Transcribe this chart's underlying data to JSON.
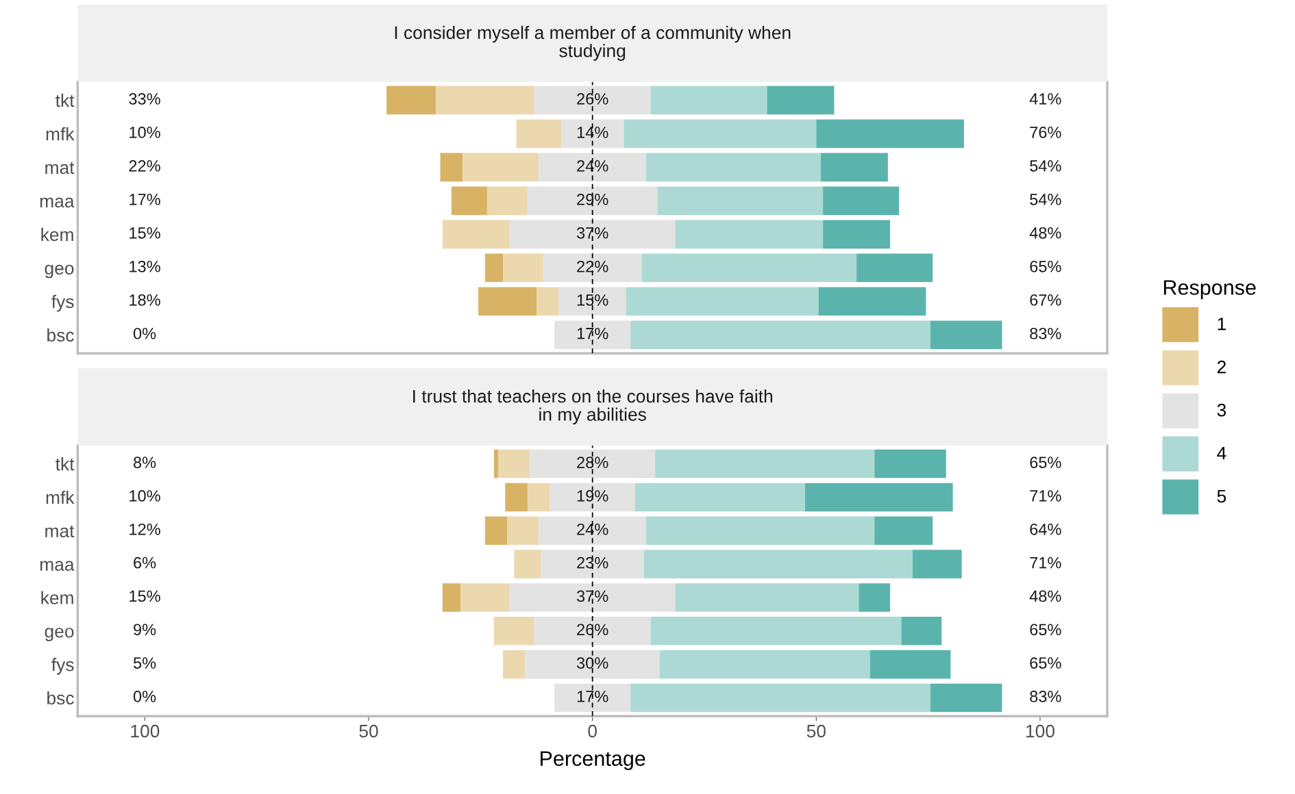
{
  "chart_data": [
    {
      "type": "bar",
      "orientation": "horizontal",
      "title": "I consider myself a member of a community when\nstudying",
      "categories": [
        "tkt",
        "mfk",
        "mat",
        "maa",
        "kem",
        "geo",
        "fys",
        "bsc"
      ],
      "series": [
        {
          "name": "1",
          "color": "#d8b365",
          "values": [
            11,
            null,
            5,
            8,
            null,
            4,
            13,
            null
          ],
          "base": [
            -46,
            null,
            -34,
            -31.5,
            null,
            -24,
            -25.5,
            null
          ]
        },
        {
          "name": "2",
          "color": "#ecd8af",
          "values": [
            22,
            10,
            17,
            9,
            15,
            9,
            5,
            null
          ],
          "base": [
            -35,
            -17,
            -29,
            -23.5,
            -33.5,
            -20,
            -12.5,
            null
          ]
        },
        {
          "name": "3",
          "color": "#e3e3e3",
          "values": [
            26,
            14,
            24,
            29,
            37,
            22,
            15,
            17
          ],
          "base": [
            -13,
            -7,
            -12,
            -14.5,
            -18.5,
            -11,
            -7.5,
            -8.5
          ]
        },
        {
          "name": "4",
          "color": "#acd9d4",
          "values": [
            26,
            43,
            39,
            37,
            33,
            48,
            43,
            67
          ],
          "base": [
            13,
            7,
            12,
            14.5,
            18.5,
            11,
            7.5,
            8.5
          ]
        },
        {
          "name": "5",
          "color": "#5ab4ac",
          "values": [
            15,
            33,
            15,
            17,
            15,
            17,
            24,
            16
          ],
          "base": [
            39,
            50,
            51,
            51.5,
            51.5,
            59,
            50.5,
            75.5
          ]
        }
      ],
      "annotations": [
        "33%",
        "26%",
        "41%",
        "10%",
        "14%",
        "76%",
        "22%",
        "24%",
        "54%",
        "17%",
        "29%",
        "54%",
        "15%",
        "37%",
        "48%",
        "13%",
        "22%",
        "65%",
        "18%",
        "15%",
        "67%",
        "0%",
        "17%",
        "83%"
      ],
      "ref_lines": [
        {
          "axis": "x",
          "value": 0,
          "color": "#000000",
          "line_style": "dashed"
        }
      ],
      "xlim": [
        -115,
        115
      ],
      "tick_labels": "y",
      "legend": "right",
      "legend_title": "Response"
    },
    {
      "type": "bar",
      "orientation": "horizontal",
      "title": "I trust that teachers on the courses have faith\nin my abilities",
      "categories": [
        "tkt",
        "mfk",
        "mat",
        "maa",
        "kem",
        "geo",
        "fys",
        "bsc"
      ],
      "series": [
        {
          "name": "1",
          "color": "#d8b365",
          "values": [
            1,
            5,
            5,
            null,
            4,
            null,
            null,
            null
          ],
          "base": [
            -22,
            -19.5,
            -24,
            null,
            -33.5,
            null,
            null,
            null
          ]
        },
        {
          "name": "2",
          "color": "#ecd8af",
          "values": [
            7,
            5,
            7,
            6,
            11,
            9,
            5,
            null
          ],
          "base": [
            -21,
            -14.5,
            -19,
            -17.5,
            -29.5,
            -22,
            -20,
            null
          ]
        },
        {
          "name": "3",
          "color": "#e3e3e3",
          "values": [
            28,
            19,
            24,
            23,
            37,
            26,
            30,
            17
          ],
          "base": [
            -14,
            -9.5,
            -12,
            -11.5,
            -18.5,
            -13,
            -15,
            -8.5
          ]
        },
        {
          "name": "4",
          "color": "#acd9d4",
          "values": [
            49,
            38,
            51,
            60,
            41,
            56,
            47,
            67
          ],
          "base": [
            14,
            9.5,
            12,
            11.5,
            18.5,
            13,
            15,
            8.5
          ]
        },
        {
          "name": "5",
          "color": "#5ab4ac",
          "values": [
            16,
            33,
            13,
            11,
            7,
            9,
            18,
            16
          ],
          "base": [
            63,
            47.5,
            63,
            71.5,
            59.5,
            69,
            62,
            75.5
          ]
        }
      ],
      "annotations": [
        "8%",
        "28%",
        "65%",
        "10%",
        "19%",
        "71%",
        "12%",
        "24%",
        "64%",
        "6%",
        "23%",
        "71%",
        "15%",
        "37%",
        "48%",
        "9%",
        "26%",
        "65%",
        "5%",
        "30%",
        "65%",
        "0%",
        "17%",
        "83%"
      ],
      "ref_lines": [
        {
          "axis": "x",
          "value": 0,
          "color": "#000000",
          "line_style": "dashed"
        }
      ],
      "xlim": [
        -115,
        115
      ],
      "xticks": [
        {
          "value": -100,
          "label": "100"
        },
        {
          "value": -50,
          "label": "50"
        },
        0,
        50,
        100
      ],
      "xlabel": "Percentage"
    }
  ]
}
